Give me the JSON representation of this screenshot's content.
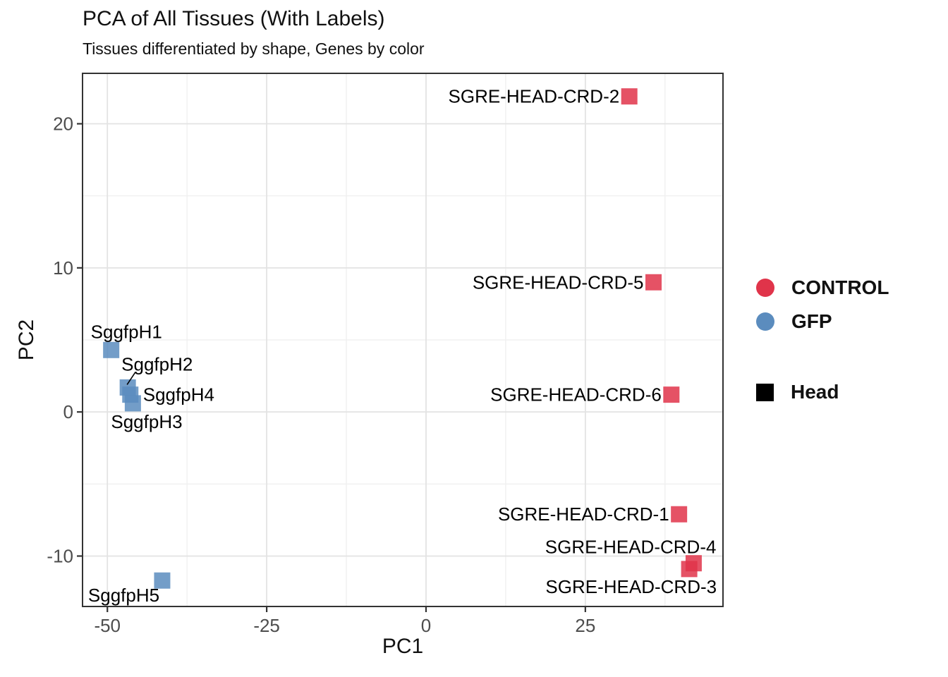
{
  "header": {
    "title": "PCA of All Tissues (With Labels)",
    "subtitle": "Tissues differentiated by shape, Genes by color"
  },
  "colors": {
    "control": "#e0344a",
    "gfp": "#5b8cbe",
    "head_shape": "#000000",
    "grid_major": "#e3e3e3",
    "grid_minor": "#f0f0f0",
    "panel_border": "#333333",
    "axis_text": "#4d4d4d",
    "text": "#111111"
  },
  "legend": {
    "color_entries": [
      {
        "label": "CONTROL",
        "color": "#e0344a",
        "shape": "circle"
      },
      {
        "label": "GFP",
        "color": "#5b8cbe",
        "shape": "circle"
      }
    ],
    "shape_entries": [
      {
        "label": "Head",
        "color": "#000000",
        "shape": "square"
      }
    ]
  },
  "chart_data": {
    "type": "scatter",
    "title": "PCA of All Tissues (With Labels)",
    "subtitle": "Tissues differentiated by shape, Genes by color",
    "xlabel": "PC1",
    "ylabel": "PC2",
    "xlim": [
      -53.9,
      46.6
    ],
    "ylim": [
      -13.5,
      23.5
    ],
    "xticks": [
      -50,
      -25,
      0,
      25
    ],
    "yticks": [
      -10,
      0,
      10,
      20
    ],
    "xticks_minor": [
      -37.5,
      -12.5,
      12.5,
      37.5
    ],
    "yticks_minor": [
      -5,
      5,
      15
    ],
    "grid": true,
    "legend_position": "right",
    "marker": "square",
    "marker_size": 23,
    "marker_opacity": 0.85,
    "series": [
      {
        "name": "CONTROL",
        "tissue": "Head",
        "color": "#e0344a",
        "points": [
          {
            "label": "SGRE-HEAD-CRD-2",
            "x": 31.9,
            "y": 21.9,
            "label_anchor": "end",
            "label_dx": -14,
            "label_dy": 9
          },
          {
            "label": "SGRE-HEAD-CRD-5",
            "x": 35.7,
            "y": 9.0,
            "label_anchor": "end",
            "label_dx": -14,
            "label_dy": 9
          },
          {
            "label": "SGRE-HEAD-CRD-6",
            "x": 38.5,
            "y": 1.2,
            "label_anchor": "end",
            "label_dx": -14,
            "label_dy": 9
          },
          {
            "label": "SGRE-HEAD-CRD-1",
            "x": 39.7,
            "y": -7.1,
            "label_anchor": "end",
            "label_dx": -14,
            "label_dy": 9
          },
          {
            "label": "SGRE-HEAD-CRD-4",
            "x": 42.0,
            "y": -10.5,
            "label_anchor": "end",
            "label_dx": 32,
            "label_dy": -14
          },
          {
            "label": "SGRE-HEAD-CRD-3",
            "x": 41.3,
            "y": -10.9,
            "label_anchor": "end",
            "label_dx": 39,
            "label_dy": 34
          }
        ]
      },
      {
        "name": "GFP",
        "tissue": "Head",
        "color": "#5b8cbe",
        "points": [
          {
            "label": "SggfpH1",
            "x": -49.4,
            "y": 4.3,
            "label_anchor": "start",
            "label_dx": -29,
            "label_dy": -17
          },
          {
            "label": "SggfpH2",
            "x": -46.8,
            "y": 1.7,
            "label_anchor": "start",
            "label_dx": -9,
            "label_dy": -24,
            "leader": {
              "x1": 11,
              "y1": -22,
              "x2": -1,
              "y2": -4
            }
          },
          {
            "label": "SggfpH4",
            "x": -46.4,
            "y": 1.2,
            "label_anchor": "start",
            "label_dx": 18,
            "label_dy": 9
          },
          {
            "label": "SggfpH3",
            "x": -46.0,
            "y": 0.6,
            "label_anchor": "start",
            "label_dx": -31,
            "label_dy": 35
          },
          {
            "label": "SggfpH5",
            "x": -41.4,
            "y": -11.7,
            "label_anchor": "start",
            "label_dx": -105,
            "label_dy": 30
          }
        ]
      }
    ]
  }
}
